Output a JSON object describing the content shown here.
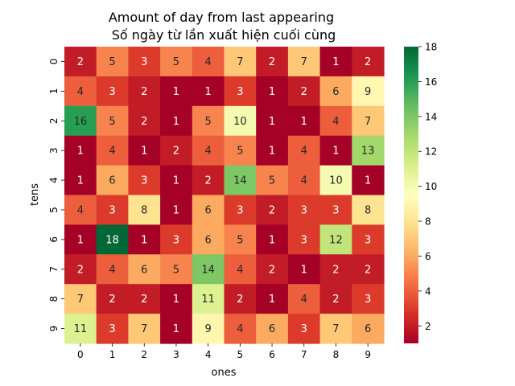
{
  "chart_data": {
    "type": "heatmap",
    "title": "Amount of day from last appearing",
    "subtitle": "Số ngày từ lần xuất hiện cuối cùng",
    "xlabel": "ones",
    "ylabel": "tens",
    "x_categories": [
      "0",
      "1",
      "2",
      "3",
      "4",
      "5",
      "6",
      "7",
      "8",
      "9"
    ],
    "y_categories": [
      "0",
      "1",
      "2",
      "3",
      "4",
      "5",
      "6",
      "7",
      "8",
      "9"
    ],
    "values": [
      [
        2,
        5,
        3,
        5,
        4,
        7,
        2,
        7,
        1,
        2
      ],
      [
        4,
        3,
        2,
        1,
        1,
        3,
        1,
        2,
        6,
        9
      ],
      [
        16,
        5,
        2,
        1,
        5,
        10,
        1,
        1,
        4,
        7
      ],
      [
        1,
        4,
        1,
        2,
        4,
        5,
        1,
        4,
        1,
        13
      ],
      [
        1,
        6,
        3,
        1,
        2,
        14,
        5,
        4,
        10,
        1
      ],
      [
        4,
        3,
        8,
        1,
        6,
        3,
        2,
        3,
        3,
        8
      ],
      [
        1,
        18,
        1,
        3,
        6,
        5,
        1,
        3,
        12,
        3
      ],
      [
        2,
        4,
        6,
        5,
        14,
        4,
        2,
        1,
        2,
        2
      ],
      [
        7,
        2,
        2,
        1,
        11,
        2,
        1,
        4,
        2,
        3
      ],
      [
        11,
        3,
        7,
        1,
        9,
        4,
        6,
        3,
        7,
        6
      ]
    ],
    "colormap": "RdYlGn",
    "vmin": 1,
    "vmax": 18,
    "colorbar_ticks": [
      "2",
      "4",
      "6",
      "8",
      "10",
      "12",
      "14",
      "16",
      "18"
    ],
    "colorbar_tick_values": [
      2,
      4,
      6,
      8,
      10,
      12,
      14,
      16,
      18
    ],
    "annotate": true
  }
}
